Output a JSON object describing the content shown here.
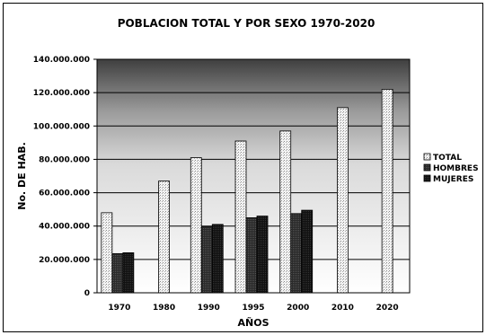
{
  "chart_data": {
    "type": "bar",
    "title": "POBLACION TOTAL Y POR SEXO 1970-2020",
    "xlabel": "AÑOS",
    "ylabel": "No. DE HAB.",
    "ylim": [
      0,
      140000000
    ],
    "yticks": [
      "0",
      "20.000.000",
      "40.000.000",
      "60.000.000",
      "80.000.000",
      "100.000.000",
      "120.000.000",
      "140.000.000"
    ],
    "ytick_values": [
      0,
      20000000,
      40000000,
      60000000,
      80000000,
      100000000,
      120000000,
      140000000
    ],
    "categories": [
      "1970",
      "1980",
      "1990",
      "1995",
      "2000",
      "2010",
      "2020"
    ],
    "series": [
      {
        "name": "TOTAL",
        "values": [
          48000000,
          67000000,
          81000000,
          91000000,
          97000000,
          111000000,
          122000000
        ],
        "color": "#e8e8e8"
      },
      {
        "name": "HOMBRES",
        "values": [
          23500000,
          null,
          39500000,
          45000000,
          47500000,
          null,
          null
        ],
        "color": "#3a3a3a"
      },
      {
        "name": "MUJERES",
        "values": [
          24000000,
          null,
          41000000,
          46000000,
          49500000,
          null,
          null
        ],
        "color": "#151515"
      }
    ],
    "legend_position": "right",
    "grid": true
  }
}
